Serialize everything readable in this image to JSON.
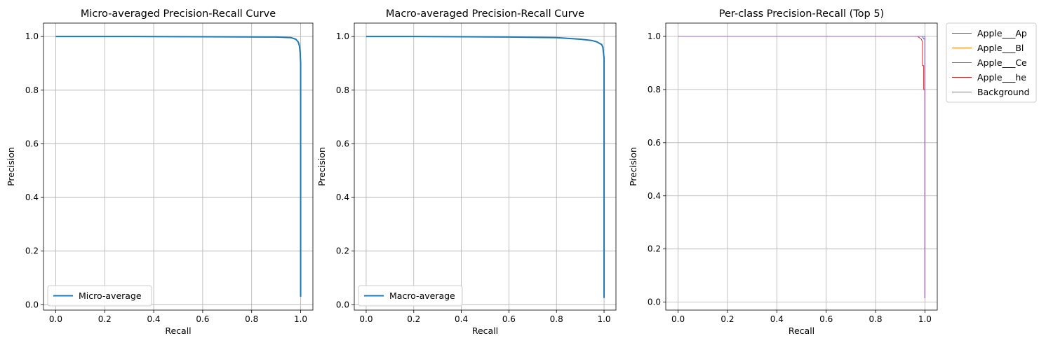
{
  "chart_data": [
    {
      "type": "line",
      "title": "Micro-averaged Precision-Recall Curve",
      "xlabel": "Recall",
      "ylabel": "Precision",
      "xlim": [
        -0.05,
        1.05
      ],
      "ylim": [
        -0.02,
        1.05
      ],
      "xticks": [
        "0.0",
        "0.2",
        "0.4",
        "0.6",
        "0.8",
        "1.0"
      ],
      "yticks": [
        "0.0",
        "0.2",
        "0.4",
        "0.6",
        "0.8",
        "1.0"
      ],
      "grid": true,
      "legend_position": "lower-left",
      "series": [
        {
          "name": "Micro-average",
          "color": "#1f77b4",
          "x": [
            0.0,
            0.3,
            0.6,
            0.9,
            0.96,
            0.98,
            0.99,
            0.995,
            0.998,
            1.0,
            1.0,
            1.0
          ],
          "y": [
            1.0,
            1.0,
            0.999,
            0.998,
            0.996,
            0.99,
            0.98,
            0.965,
            0.94,
            0.9,
            0.5,
            0.03
          ]
        }
      ]
    },
    {
      "type": "line",
      "title": "Macro-averaged Precision-Recall Curve",
      "xlabel": "Recall",
      "ylabel": "Precision",
      "xlim": [
        -0.05,
        1.05
      ],
      "ylim": [
        -0.02,
        1.05
      ],
      "xticks": [
        "0.0",
        "0.2",
        "0.4",
        "0.6",
        "0.8",
        "1.0"
      ],
      "yticks": [
        "0.0",
        "0.2",
        "0.4",
        "0.6",
        "0.8",
        "1.0"
      ],
      "grid": true,
      "legend_position": "lower-left",
      "series": [
        {
          "name": "Macro-average",
          "color": "#1f77b4",
          "x": [
            0.0,
            0.2,
            0.4,
            0.6,
            0.8,
            0.9,
            0.95,
            0.97,
            0.98,
            0.99,
            0.995,
            1.0,
            1.0,
            1.0
          ],
          "y": [
            1.0,
            1.0,
            0.999,
            0.998,
            0.996,
            0.99,
            0.985,
            0.98,
            0.975,
            0.97,
            0.96,
            0.92,
            0.5,
            0.025
          ]
        }
      ]
    },
    {
      "type": "line",
      "title": "Per-class Precision-Recall (Top 5)",
      "xlabel": "Recall",
      "ylabel": "Precision",
      "xlim": [
        -0.05,
        1.05
      ],
      "ylim": [
        -0.03,
        1.05
      ],
      "xticks": [
        "0.0",
        "0.2",
        "0.4",
        "0.6",
        "0.8",
        "1.0"
      ],
      "yticks": [
        "0.0",
        "0.2",
        "0.4",
        "0.6",
        "0.8",
        "1.0"
      ],
      "grid": true,
      "legend_position": "outside-upper-right",
      "series": [
        {
          "name": "Apple___Ap",
          "color": "#1f77b4",
          "x": [
            0.0,
            0.99,
            0.995,
            1.0,
            1.0
          ],
          "y": [
            1.0,
            1.0,
            0.99,
            0.99,
            0.015
          ]
        },
        {
          "name": "Apple___Bl",
          "color": "#ff7f0e",
          "x": [
            0.0,
            0.995,
            1.0,
            1.0
          ],
          "y": [
            1.0,
            1.0,
            1.0,
            0.015
          ]
        },
        {
          "name": "Apple___Ce",
          "color": "#2ca02c",
          "x": [
            0.0,
            0.997,
            1.0,
            1.0
          ],
          "y": [
            1.0,
            1.0,
            1.0,
            0.015
          ]
        },
        {
          "name": "Apple___he",
          "color": "#d62728",
          "x": [
            0.0,
            0.97,
            0.985,
            0.99,
            0.99,
            0.995,
            0.995,
            1.0,
            1.0
          ],
          "y": [
            1.0,
            1.0,
            0.99,
            0.98,
            0.89,
            0.89,
            0.8,
            0.8,
            0.015
          ]
        },
        {
          "name": "Background",
          "color": "#9467bd",
          "x": [
            0.0,
            0.998,
            1.0,
            1.0
          ],
          "y": [
            1.0,
            1.0,
            1.0,
            0.015
          ]
        }
      ]
    }
  ]
}
